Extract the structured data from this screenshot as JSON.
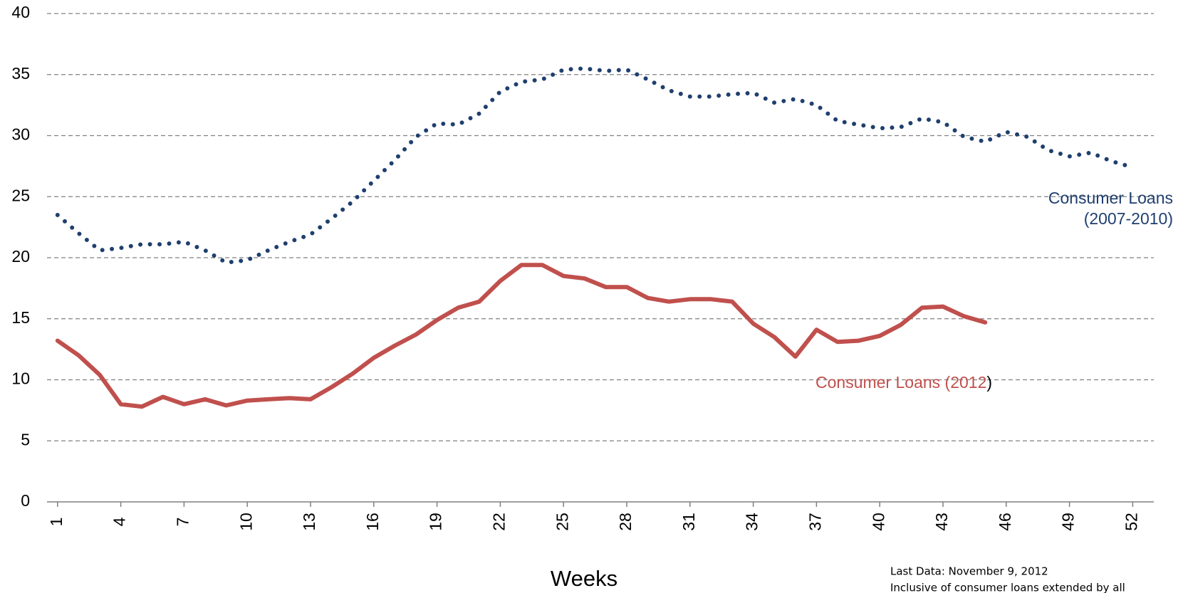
{
  "chart_data": {
    "type": "line",
    "x_label": "Weeks",
    "x": [
      1,
      2,
      3,
      4,
      5,
      6,
      7,
      8,
      9,
      10,
      11,
      12,
      13,
      14,
      15,
      16,
      17,
      18,
      19,
      20,
      21,
      22,
      23,
      24,
      25,
      26,
      27,
      28,
      29,
      30,
      31,
      32,
      33,
      34,
      35,
      36,
      37,
      38,
      39,
      40,
      41,
      42,
      43,
      44,
      45,
      46,
      47,
      48,
      49,
      50,
      51,
      52
    ],
    "xlim": [
      0.5,
      53
    ],
    "xticks": [
      1,
      4,
      7,
      10,
      13,
      16,
      19,
      22,
      25,
      28,
      31,
      34,
      37,
      40,
      43,
      46,
      49,
      52
    ],
    "ylim": [
      0,
      40
    ],
    "yticks": [
      0,
      5,
      10,
      15,
      20,
      25,
      30,
      35,
      40
    ],
    "grid": true,
    "series": [
      {
        "name": "Consumer Loans (2007-2010)",
        "color": "#1f3f6e",
        "style": "dotted",
        "label_lines": [
          "Consumer Loans",
          "(2007-2010)"
        ],
        "values": [
          23.5,
          22.0,
          20.6,
          20.8,
          21.1,
          21.1,
          21.3,
          20.6,
          19.6,
          19.8,
          20.6,
          21.3,
          21.9,
          23.2,
          24.6,
          26.3,
          28.0,
          29.9,
          31.0,
          30.9,
          31.8,
          33.6,
          34.4,
          34.6,
          35.4,
          35.5,
          35.3,
          35.4,
          34.6,
          33.7,
          33.2,
          33.2,
          33.4,
          33.5,
          32.7,
          33.0,
          32.5,
          31.2,
          30.9,
          30.6,
          30.7,
          31.4,
          31.1,
          29.9,
          29.5,
          30.3,
          29.9,
          28.8,
          28.3,
          28.6,
          27.9,
          27.4
        ]
      },
      {
        "name": "Consumer Loans (2012)",
        "color": "#c0504d",
        "style": "solid",
        "label_parts": [
          {
            "text": "Consumer Loans (2012",
            "color": "#c0504d"
          },
          {
            "text": ")",
            "color": "#000000"
          }
        ],
        "values": [
          13.2,
          12.0,
          10.4,
          8.0,
          7.8,
          8.6,
          8.0,
          8.4,
          7.9,
          8.3,
          8.4,
          8.5,
          8.4,
          9.4,
          10.5,
          11.8,
          12.8,
          13.7,
          14.9,
          15.9,
          16.4,
          18.1,
          19.4,
          19.4,
          18.5,
          18.3,
          17.6,
          17.6,
          16.7,
          16.4,
          16.6,
          16.6,
          16.4,
          14.6,
          13.5,
          11.9,
          14.1,
          13.1,
          13.2,
          13.6,
          14.5,
          15.9,
          16.0,
          15.2,
          14.7,
          null,
          null,
          null,
          null,
          null,
          null,
          null
        ]
      }
    ],
    "notes": [
      "Last Data: November 9, 2012",
      "Inclusive of consumer loans extended by all"
    ]
  }
}
